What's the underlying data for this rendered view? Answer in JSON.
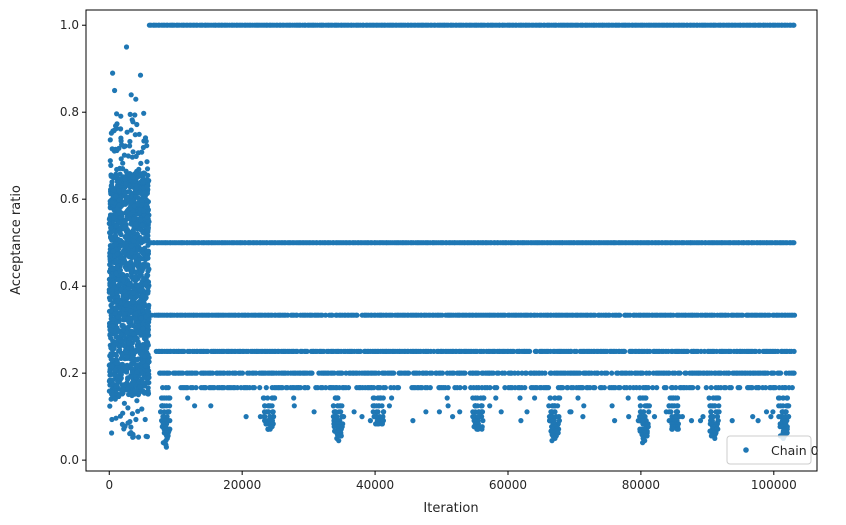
{
  "chart_data": {
    "type": "scatter",
    "title": "",
    "xlabel": "Iteration",
    "ylabel": "Acceptance ratio",
    "xlim": [
      -3500,
      106500
    ],
    "ylim": [
      -0.025,
      1.035
    ],
    "xticks": [
      0,
      20000,
      40000,
      60000,
      80000,
      100000
    ],
    "xtick_labels": [
      "0",
      "20000",
      "40000",
      "60000",
      "80000",
      "100000"
    ],
    "yticks": [
      0.0,
      0.2,
      0.4,
      0.6,
      0.8,
      1.0
    ],
    "ytick_labels": [
      "0.0",
      "0.2",
      "0.4",
      "0.6",
      "0.8",
      "1.0"
    ],
    "grid": false,
    "legend": {
      "placement": "lower-right",
      "entries": [
        "Chain 0"
      ]
    },
    "series": [
      {
        "name": "Chain 0",
        "color": "#1f77b4",
        "marker": "circle",
        "x_range": [
          0,
          103000
        ],
        "burn_in": {
          "x_range": [
            0,
            6000
          ],
          "y_range": [
            0.05,
            0.8
          ],
          "dense_band": [
            0.15,
            0.66
          ],
          "outliers": [
            [
              500,
              0.89
            ],
            [
              2600,
              0.95
            ],
            [
              4700,
              0.885
            ],
            [
              800,
              0.85
            ],
            [
              3300,
              0.84
            ],
            [
              4000,
              0.83
            ]
          ]
        },
        "levels": [
          {
            "y": 1.0,
            "x_range": [
              6000,
              103000
            ]
          },
          {
            "y": 0.5,
            "x_range": [
              6000,
              103000
            ]
          },
          {
            "y": 0.3333,
            "x_range": [
              6000,
              103000
            ]
          },
          {
            "y": 0.25,
            "x_range": [
              7000,
              103000
            ]
          },
          {
            "y": 0.2,
            "x_range": [
              7500,
              103000
            ]
          },
          {
            "y": 0.1667,
            "x_range": [
              8000,
              103000
            ]
          }
        ],
        "low_clusters": [
          {
            "x": 8500,
            "min_y": 0.03
          },
          {
            "x": 24000,
            "min_y": 0.07
          },
          {
            "x": 34500,
            "min_y": 0.045
          },
          {
            "x": 40500,
            "min_y": 0.08
          },
          {
            "x": 55500,
            "min_y": 0.07
          },
          {
            "x": 67000,
            "min_y": 0.045
          },
          {
            "x": 80500,
            "min_y": 0.04
          },
          {
            "x": 85000,
            "min_y": 0.07
          },
          {
            "x": 91000,
            "min_y": 0.05
          },
          {
            "x": 101500,
            "min_y": 0.05
          }
        ]
      }
    ]
  }
}
